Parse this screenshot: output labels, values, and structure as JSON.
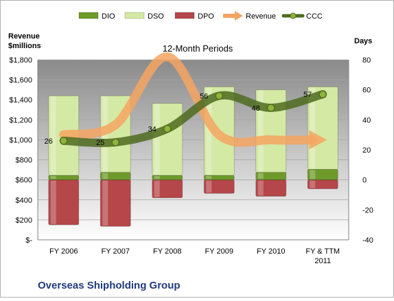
{
  "chart_data": {
    "type": "bar",
    "title": "12-Month Periods",
    "company": "Overseas Shipholding Group",
    "left_axis_label": [
      "Revenue",
      "$millions"
    ],
    "right_axis_label": "Days",
    "categories": [
      "FY 2006",
      "FY 2007",
      "FY 2008",
      "FY 2009",
      "FY 2010",
      [
        "FY & TTM",
        "2011"
      ]
    ],
    "left_axis": {
      "min": 0,
      "max": 1800,
      "step": 200,
      "tick_labels": [
        "$-",
        "$200",
        "$400",
        "$600",
        "$800",
        "$1,000",
        "$1,200",
        "$1,400",
        "$1,600",
        "$1,800"
      ]
    },
    "right_axis": {
      "min": -40,
      "max": 80,
      "step": 20,
      "tick_labels": [
        "-40",
        "-20",
        "0",
        "20",
        "40",
        "60",
        "80"
      ]
    },
    "legend": {
      "position": "top",
      "items": [
        {
          "name": "DIO",
          "kind": "bar",
          "color": "#6e9a2a"
        },
        {
          "name": "DSO",
          "kind": "bar",
          "color": "#d4e9a4"
        },
        {
          "name": "DPO",
          "kind": "bar",
          "color": "#b5464a"
        },
        {
          "name": "Revenue",
          "kind": "arrow",
          "color": "#f4a460"
        },
        {
          "name": "CCC",
          "kind": "line",
          "color": "#4f6b1f"
        }
      ]
    },
    "series": [
      {
        "name": "DIO",
        "axis": "right",
        "values": [
          3,
          5,
          3,
          3,
          5,
          7
        ]
      },
      {
        "name": "DSO",
        "axis": "right",
        "values": [
          53,
          51,
          48,
          59,
          55,
          55
        ]
      },
      {
        "name": "DPO",
        "axis": "right",
        "values": [
          -30,
          -31,
          -12,
          -9,
          -11,
          -6
        ]
      },
      {
        "name": "CCC",
        "axis": "right",
        "values": [
          26,
          25,
          34,
          56,
          48,
          57
        ],
        "labels": [
          "26",
          "25",
          "34",
          "56",
          "48",
          "57"
        ]
      },
      {
        "name": "Revenue",
        "axis": "left",
        "values": [
          1050,
          1150,
          1830,
          1050,
          1000,
          1000
        ]
      }
    ],
    "colors": {
      "plot_top": "#8a8a8a",
      "plot_bottom": "#ffffff",
      "dio": "#6e9a2a",
      "dso": "#d4e9a4",
      "dpo": "#b5464a",
      "revenue": "#f4a460",
      "ccc": "#4f6b1f",
      "company": "#1f3a7a"
    }
  }
}
